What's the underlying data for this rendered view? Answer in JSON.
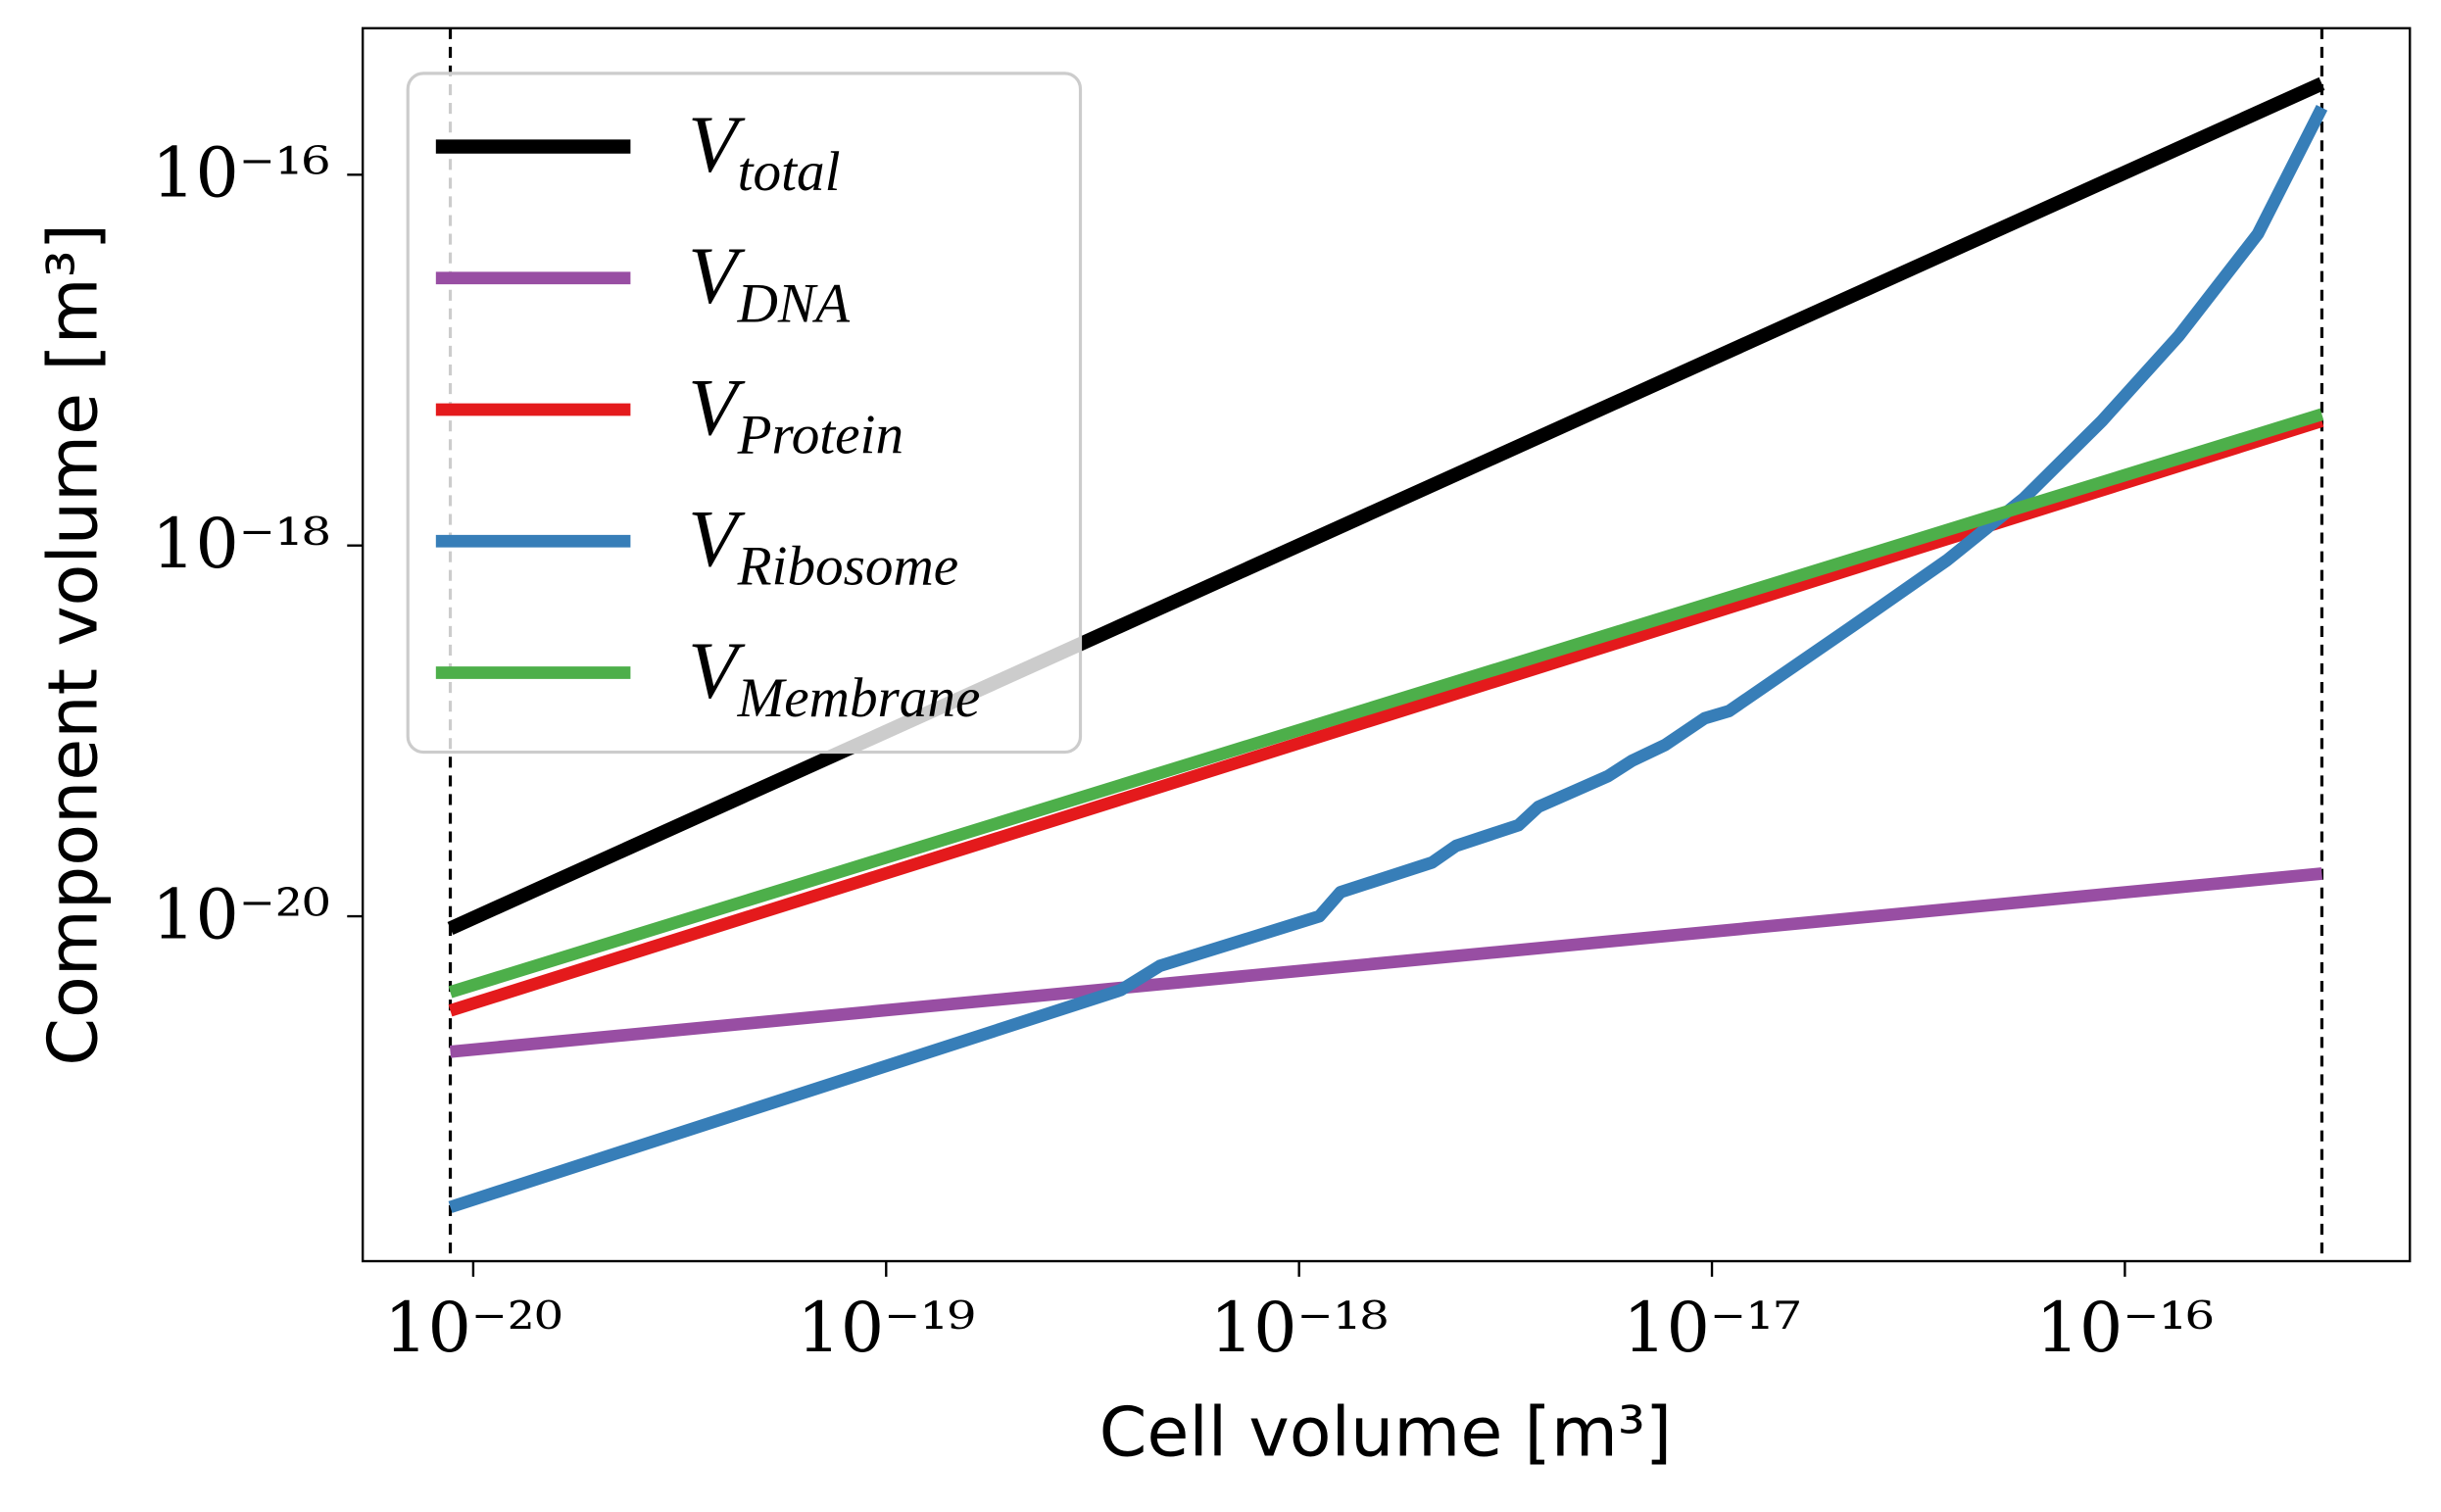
{
  "chart_data": {
    "type": "line",
    "x_label": "Cell volume [m³]",
    "y_label": "Component volume [m³]",
    "log_x": true,
    "log_y": true,
    "xlim": [
      5.4e-21,
      4.9e-16
    ],
    "ylim": [
      1.38e-22,
      6.17e-16
    ],
    "xticks": [
      {
        "value": 1e-20,
        "label": "10⁻²⁰"
      },
      {
        "value": 1e-19,
        "label": "10⁻¹⁹"
      },
      {
        "value": 1e-18,
        "label": "10⁻¹⁸"
      },
      {
        "value": 1e-17,
        "label": "10⁻¹⁷"
      },
      {
        "value": 1e-16,
        "label": "10⁻¹⁶"
      }
    ],
    "yticks": [
      {
        "value": 1e-20,
        "label": "10⁻²⁰"
      },
      {
        "value": 1e-18,
        "label": "10⁻¹⁸"
      },
      {
        "value": 1e-16,
        "label": "10⁻¹⁶"
      }
    ],
    "vlines": [
      8.8e-21,
      3e-16
    ],
    "vline_color": "#000000",
    "legend": "upper left",
    "series": [
      {
        "name": "V",
        "subscript": "total",
        "color": "#000000",
        "x": [
          8.8e-21,
          3e-16
        ],
        "values": [
          8.6e-21,
          3.1e-16
        ]
      },
      {
        "name": "V",
        "subscript": "DNA",
        "color": "#984ea3",
        "x": [
          8.8e-21,
          3e-16
        ],
        "values": [
          1.86e-21,
          1.7e-20
        ]
      },
      {
        "name": "V",
        "subscript": "Protein",
        "color": "#e41a1c",
        "x": [
          8.8e-21,
          3e-16
        ],
        "values": [
          3.1e-21,
          4.7e-18
        ]
      },
      {
        "name": "V",
        "subscript": "Ribosome",
        "color": "#377eb8",
        "x": [
          8.8e-21,
          3.7e-19,
          4.6e-19,
          1.12e-18,
          1.26e-18,
          2.1e-18,
          2.4e-18,
          3.4e-18,
          3.8e-18,
          4.6e-18,
          5.6e-18,
          6.4e-18,
          7.7e-18,
          9.6e-18,
          1.1e-17,
          2.2e-17,
          3.7e-17,
          5.7e-17,
          8.8e-17,
          1.35e-16,
          2.1e-16,
          3e-16
        ],
        "values": [
          2.7e-22,
          4e-21,
          5.4e-21,
          1e-20,
          1.35e-20,
          1.95e-20,
          2.4e-20,
          3.1e-20,
          3.9e-20,
          4.7e-20,
          5.7e-20,
          6.9e-20,
          8.4e-20,
          1.17e-19,
          1.28e-19,
          3.7e-19,
          8.3e-19,
          1.8e-18,
          4.7e-18,
          1.35e-17,
          4.8e-17,
          2.3e-16
        ]
      },
      {
        "name": "V",
        "subscript": "Membrane",
        "color": "#4daf4a",
        "x": [
          8.8e-21,
          3e-16
        ],
        "values": [
          3.9e-21,
          5.1e-18
        ]
      }
    ]
  }
}
